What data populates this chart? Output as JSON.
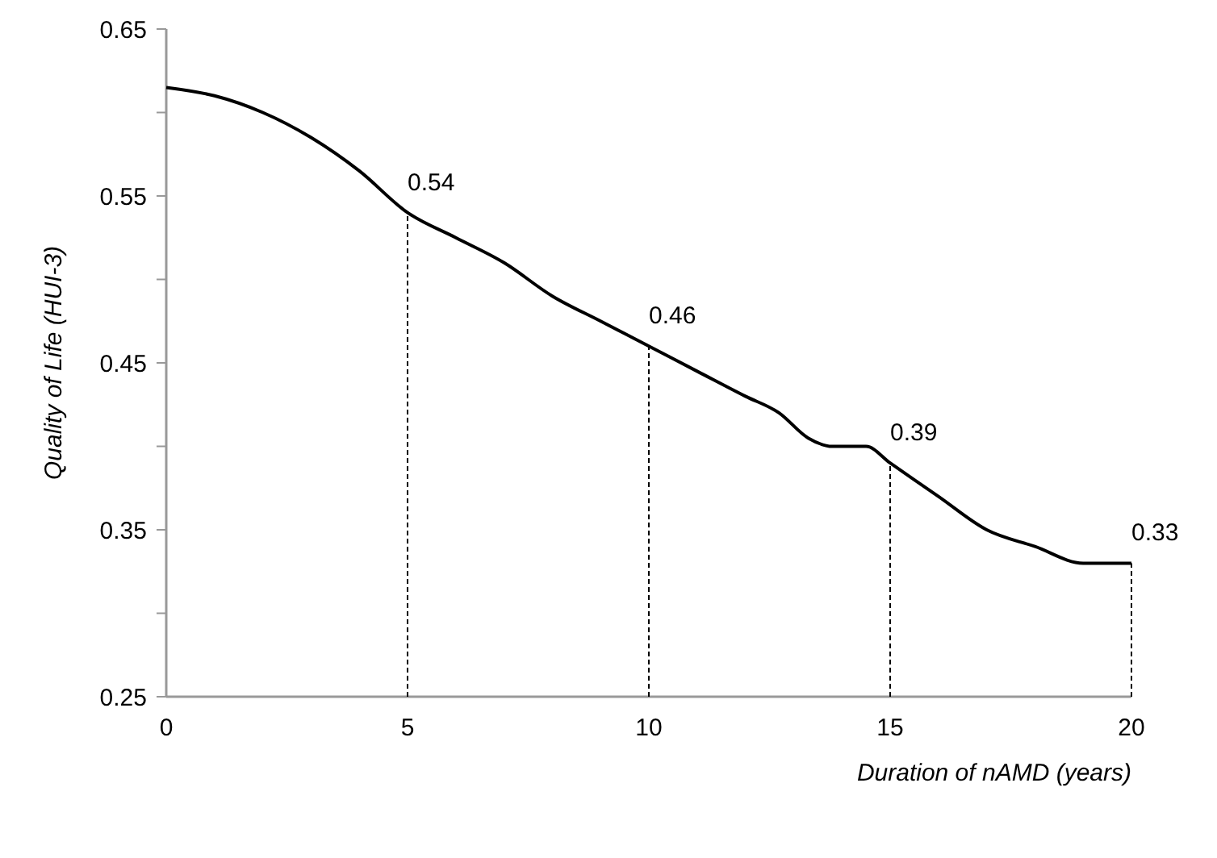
{
  "chart_data": {
    "type": "line",
    "xlabel": "Duration of nAMD (years)",
    "ylabel": "Quality of Life (HUI-3)",
    "x": [
      0,
      1,
      2,
      3,
      4,
      5,
      6,
      7,
      8,
      9,
      10,
      11,
      12,
      12.7,
      13.3,
      13.8,
      14.5,
      15,
      16,
      17,
      18,
      19,
      20
    ],
    "series": [
      {
        "color": "#000000",
        "values": [
          0.615,
          0.61,
          0.6,
          0.585,
          0.565,
          0.54,
          0.525,
          0.51,
          0.49,
          0.475,
          0.46,
          0.445,
          0.43,
          0.42,
          0.405,
          0.4,
          0.4,
          0.39,
          0.37,
          0.35,
          0.34,
          0.33,
          0.33
        ]
      }
    ],
    "xlim": [
      0,
      20
    ],
    "xticks": [
      0,
      5,
      10,
      15,
      20
    ],
    "ylim": [
      0.25,
      0.65
    ],
    "yticks": [
      0.25,
      {
        "value": 0.3,
        "label": null
      },
      0.35,
      {
        "value": 0.4,
        "label": null
      },
      0.45,
      {
        "value": 0.5,
        "label": null
      },
      0.55,
      {
        "value": 0.6,
        "label": null
      },
      0.65
    ],
    "annotations": [
      {
        "text": "0.54",
        "x": 5,
        "y": 0.54
      },
      {
        "text": "0.46",
        "x": 10,
        "y": 0.46
      },
      {
        "text": "0.39",
        "x": 15,
        "y": 0.39
      },
      {
        "text": "0.33",
        "x": 20,
        "y": 0.33
      }
    ],
    "marker": "none",
    "line_style": "solid"
  }
}
